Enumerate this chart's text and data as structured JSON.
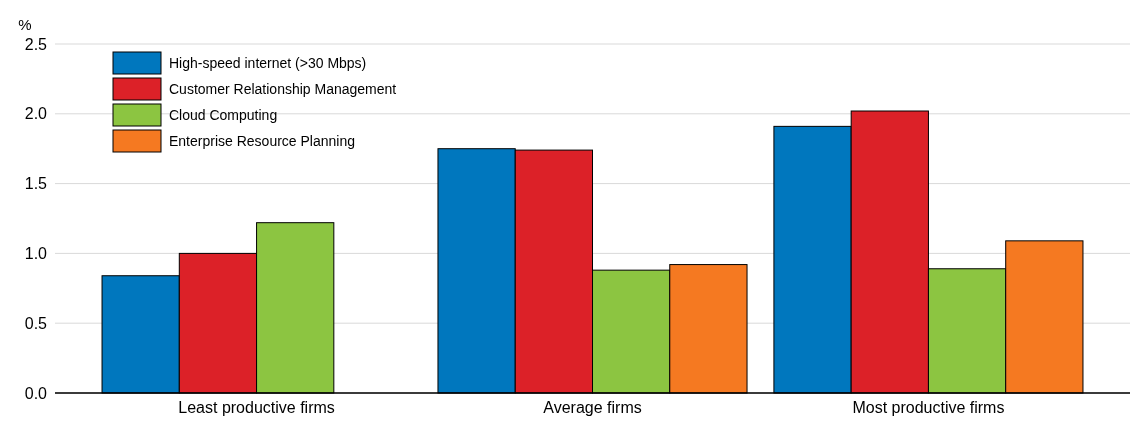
{
  "chart_data": {
    "type": "bar",
    "ylabel": "%",
    "categories": [
      "Least productive firms",
      "Average firms",
      "Most productive firms"
    ],
    "series": [
      {
        "name": "High-speed internet (>30 Mbps)",
        "color": "#0077be",
        "values": [
          0.84,
          1.75,
          1.91
        ]
      },
      {
        "name": "Customer Relationship Management",
        "color": "#dc2128",
        "values": [
          1.0,
          1.74,
          2.02
        ]
      },
      {
        "name": "Cloud Computing",
        "color": "#8cc541",
        "values": [
          1.22,
          0.88,
          0.89
        ]
      },
      {
        "name": "Enterprise Resource Planning",
        "color": "#f57921",
        "values": [
          null,
          0.92,
          1.09
        ]
      }
    ],
    "ylim": [
      0,
      2.5
    ],
    "yticks": [
      {
        "value": 0,
        "label": "0.0"
      },
      {
        "value": 0.5,
        "label": "0.5"
      },
      {
        "value": 1,
        "label": "1.0"
      },
      {
        "value": 1.5,
        "label": "1.5"
      },
      {
        "value": 2,
        "label": "2.0"
      },
      {
        "value": 2.5,
        "label": "2.5"
      }
    ],
    "grid": "y",
    "legend": "top left"
  }
}
